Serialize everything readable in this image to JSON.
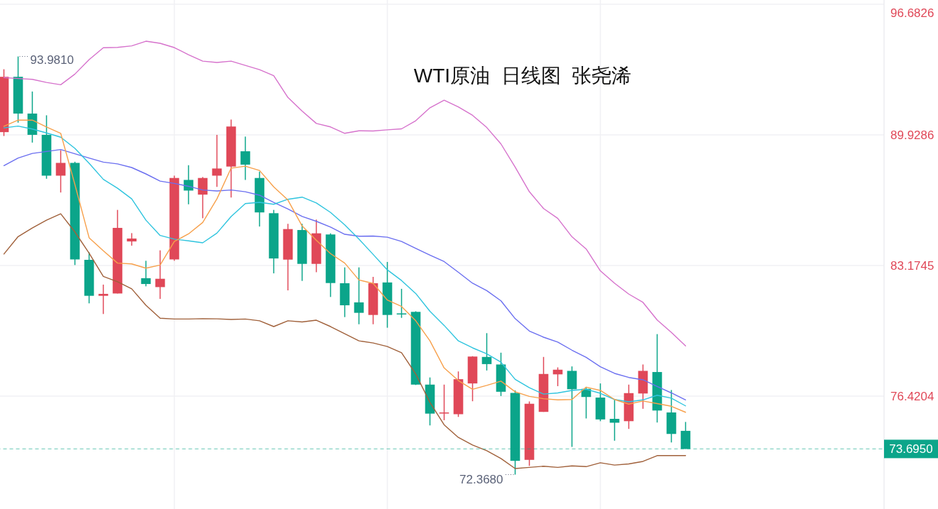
{
  "chart_data": {
    "type": "candlestick",
    "title": "WTI原油  日线图  张尧浠",
    "categories": [
      null,
      null,
      null,
      null,
      null,
      null,
      null,
      null,
      null,
      null,
      null,
      null,
      null,
      null,
      null,
      null,
      null,
      null,
      null,
      null,
      null,
      null,
      null,
      null,
      null,
      null,
      null,
      null,
      null,
      null,
      null,
      null,
      null,
      null,
      null,
      null,
      null,
      null,
      null,
      null,
      null,
      null,
      null,
      null,
      null,
      null,
      null,
      null,
      null
    ],
    "ohlc": [
      [
        90.07,
        93.32,
        89.87,
        92.93
      ],
      [
        92.93,
        93.981,
        90.56,
        91.03
      ],
      [
        91.03,
        92.17,
        89.53,
        89.93
      ],
      [
        89.93,
        90.94,
        87.66,
        87.82
      ],
      [
        87.82,
        89.13,
        86.95,
        88.48
      ],
      [
        88.48,
        88.54,
        83.2,
        83.49
      ],
      [
        83.47,
        83.86,
        81.22,
        81.61
      ],
      [
        81.61,
        82.19,
        80.67,
        81.71
      ],
      [
        81.73,
        86.05,
        81.73,
        85.12
      ],
      [
        84.42,
        84.85,
        84.2,
        84.57
      ],
      [
        82.52,
        83.42,
        82.1,
        82.22
      ],
      [
        82.06,
        83.96,
        81.45,
        82.49
      ],
      [
        83.49,
        87.82,
        83.42,
        87.7
      ],
      [
        87.6,
        88.36,
        86.34,
        87.05
      ],
      [
        86.84,
        87.75,
        85.62,
        87.7
      ],
      [
        87.82,
        89.93,
        87.24,
        88.19
      ],
      [
        88.29,
        90.72,
        86.69,
        90.36
      ],
      [
        89.08,
        89.84,
        87.6,
        88.39
      ],
      [
        87.7,
        88.03,
        85.19,
        85.92
      ],
      [
        85.88,
        86.05,
        82.77,
        83.54
      ],
      [
        83.48,
        85.33,
        81.89,
        85.06
      ],
      [
        85.01,
        85.33,
        82.38,
        83.26
      ],
      [
        83.26,
        85.55,
        82.83,
        84.84
      ],
      [
        84.78,
        84.84,
        81.55,
        82.27
      ],
      [
        82.26,
        83.08,
        80.51,
        81.12
      ],
      [
        81.27,
        83.08,
        80.14,
        80.73
      ],
      [
        80.62,
        82.59,
        80.14,
        82.26
      ],
      [
        82.3,
        83.36,
        79.96,
        80.62
      ],
      [
        80.7,
        81.97,
        80.47,
        80.69
      ],
      [
        80.78,
        80.81,
        77.0,
        77.02
      ],
      [
        77.02,
        77.39,
        74.91,
        75.52
      ],
      [
        75.55,
        77.02,
        75.18,
        75.58
      ],
      [
        75.49,
        77.7,
        75.35,
        77.3
      ],
      [
        77.08,
        78.49,
        76.16,
        78.47
      ],
      [
        78.45,
        79.68,
        77.75,
        78.08
      ],
      [
        78.06,
        78.67,
        76.43,
        76.65
      ],
      [
        76.59,
        76.72,
        72.368,
        73.08
      ],
      [
        73.13,
        76.15,
        72.82,
        76.03
      ],
      [
        75.61,
        78.45,
        75.61,
        77.57
      ],
      [
        77.55,
        77.91,
        76.94,
        77.79
      ],
      [
        77.73,
        77.96,
        73.8,
        76.78
      ],
      [
        76.8,
        76.86,
        75.27,
        76.38
      ],
      [
        76.35,
        77.08,
        75.13,
        75.22
      ],
      [
        75.25,
        76.25,
        74.12,
        75.05
      ],
      [
        75.13,
        77.02,
        74.73,
        76.58
      ],
      [
        76.56,
        78.06,
        75.77,
        77.73
      ],
      [
        77.67,
        79.63,
        75.06,
        75.68
      ],
      [
        75.58,
        76.74,
        74.03,
        74.47
      ],
      [
        74.63,
        75.09,
        73.695,
        73.695
      ]
    ],
    "colors": [
      "#e04858",
      "#0ba58a",
      "#0ba58a",
      "#0ba58a",
      "#e04858",
      "#0ba58a",
      "#0ba58a",
      "#e04858",
      "#e04858",
      "#e04858",
      "#0ba58a",
      "#e04858",
      "#e04858",
      "#0ba58a",
      "#e04858",
      "#e04858",
      "#e04858",
      "#0ba58a",
      "#0ba58a",
      "#0ba58a",
      "#e04858",
      "#0ba58a",
      "#e04858",
      "#0ba58a",
      "#0ba58a",
      "#0ba58a",
      "#e04858",
      "#0ba58a",
      "#0ba58a",
      "#0ba58a",
      "#0ba58a",
      "#e04858",
      "#e04858",
      "#e04858",
      "#0ba58a",
      "#0ba58a",
      "#0ba58a",
      "#e04858",
      "#e04858",
      "#e04858",
      "#0ba58a",
      "#0ba58a",
      "#0ba58a",
      "#0ba58a",
      "#e04858",
      "#e04858",
      "#0ba58a",
      "#0ba58a",
      "#0ba58a"
    ],
    "series": [
      {
        "type": "line",
        "color": "#d672cc",
        "values": [
          92.89,
          92.84,
          92.8,
          92.64,
          92.52,
          93.07,
          93.82,
          94.43,
          94.45,
          94.53,
          94.77,
          94.66,
          94.44,
          94.07,
          93.74,
          93.67,
          93.74,
          93.52,
          93.3,
          92.99,
          91.86,
          91.16,
          90.52,
          90.34,
          90.01,
          90.14,
          90.13,
          90.19,
          90.24,
          90.66,
          91.33,
          91.72,
          91.37,
          90.94,
          90.31,
          89.46,
          88.26,
          86.99,
          86.12,
          85.61,
          84.66,
          84.03,
          82.9,
          82.26,
          81.7,
          81.27,
          80.36,
          79.72,
          79.02
        ]
      },
      {
        "type": "line",
        "color": "#6b6ff0",
        "values": [
          88.34,
          88.73,
          88.97,
          89.07,
          89.17,
          88.95,
          88.73,
          88.52,
          88.43,
          88.24,
          87.91,
          87.54,
          87.42,
          87.27,
          87.08,
          87.03,
          87.08,
          86.99,
          86.81,
          86.44,
          86.1,
          85.71,
          85.46,
          85.16,
          84.79,
          84.69,
          84.7,
          84.64,
          84.42,
          84.06,
          83.71,
          83.38,
          82.83,
          82.26,
          81.88,
          81.35,
          80.43,
          79.79,
          79.47,
          79.22,
          78.8,
          78.43,
          77.94,
          77.6,
          77.39,
          77.27,
          76.92,
          76.59,
          76.23
        ]
      },
      {
        "type": "line",
        "color": "#2ec4de",
        "values": [
          90.29,
          90.38,
          90.23,
          90.03,
          89.81,
          89.23,
          88.46,
          87.63,
          87.17,
          86.62,
          85.52,
          84.73,
          84.54,
          84.45,
          84.35,
          84.85,
          85.71,
          86.38,
          86.44,
          86.34,
          86.6,
          86.71,
          86.41,
          85.92,
          85.28,
          84.54,
          83.75,
          82.95,
          82.4,
          81.73,
          80.81,
          80.08,
          79.28,
          78.92,
          78.61,
          78.18,
          77.29,
          76.86,
          76.53,
          76.59,
          76.72,
          76.78,
          76.57,
          76.25,
          76.13,
          76.23,
          76.47,
          76.32,
          75.92
        ]
      },
      {
        "type": "line",
        "color": "#f7a04b",
        "values": [
          90.37,
          90.69,
          90.69,
          90.34,
          90.01,
          87.36,
          84.61,
          83.94,
          83.3,
          83.26,
          83.04,
          83.2,
          84.42,
          84.81,
          85.4,
          86.62,
          88.21,
          88.31,
          88.09,
          87.24,
          86.56,
          85.22,
          84.48,
          83.79,
          83.3,
          82.43,
          82.25,
          81.39,
          81.06,
          80.32,
          79.28,
          77.88,
          77.23,
          76.78,
          76.98,
          77.2,
          76.65,
          76.41,
          76.29,
          76.23,
          76.25,
          76.89,
          76.72,
          76.25,
          76.01,
          76.17,
          76.04,
          75.9,
          75.59
        ]
      },
      {
        "type": "line",
        "color": "#a0603a",
        "values": [
          83.77,
          84.67,
          85.12,
          85.52,
          85.85,
          84.91,
          83.81,
          82.61,
          82.34,
          81.97,
          81.12,
          80.45,
          80.41,
          80.41,
          80.43,
          80.42,
          80.39,
          80.41,
          80.32,
          80.02,
          80.32,
          80.26,
          80.35,
          80.02,
          79.65,
          79.28,
          79.17,
          78.99,
          78.67,
          77.57,
          76.1,
          74.94,
          74.29,
          73.9,
          73.6,
          73.2,
          72.68,
          72.74,
          72.8,
          72.74,
          72.82,
          72.78,
          72.98,
          72.86,
          72.92,
          73.05,
          73.35,
          73.35,
          73.35
        ]
      }
    ],
    "ylim": [
      70.59,
      96.9
    ],
    "yticks": [
      96.6826,
      89.9286,
      83.1745,
      76.4204
    ],
    "tick_labels": "y",
    "grid": true,
    "line_style": "solid",
    "ref_lines": [
      {
        "axis": "y",
        "value": 73.695,
        "label": "73.6950",
        "color": "#0ba58a",
        "line_style": "dashed"
      }
    ],
    "annotations": [
      "93.9810",
      "72.3680"
    ]
  }
}
